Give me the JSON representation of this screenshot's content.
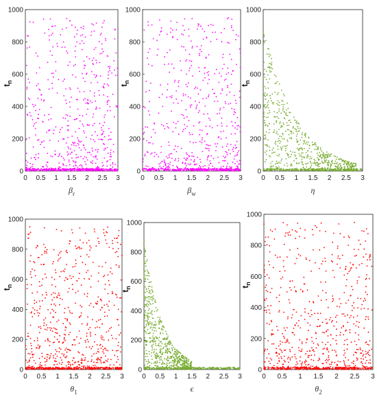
{
  "colors": {
    "magenta": "#ff00ff",
    "green": "#77ac30",
    "red": "#ff0000"
  },
  "chart_data": [
    {
      "type": "scatter",
      "panel": "1",
      "xlabel_base": "β",
      "xlabel_sub": "r",
      "ylabel_base": "t",
      "ylabel_sub": "n",
      "xlim": [
        0,
        3
      ],
      "ylim": [
        0,
        1000
      ],
      "xtick_labels": [
        "0",
        "0.5",
        "1",
        "1.5",
        "2",
        "2.5",
        "3"
      ],
      "ytick_labels": [
        "0",
        "200",
        "400",
        "600",
        "800",
        "1000"
      ],
      "color_key": "magenta",
      "trend": "uniform",
      "series": [
        {
          "note": "dense band near y≈10 across full x range; scattered points up to ~950, denser at larger x"
        }
      ]
    },
    {
      "type": "scatter",
      "panel": "2",
      "xlabel_base": "β",
      "xlabel_sub": "w",
      "ylabel_base": "t",
      "ylabel_sub": "n",
      "xlim": [
        0,
        3
      ],
      "ylim": [
        0,
        1000
      ],
      "xtick_labels": [
        "0",
        "0.5",
        "1",
        "1.5",
        "2",
        "2.5",
        "3"
      ],
      "ytick_labels": [
        "0",
        "200",
        "400",
        "600",
        "800",
        "1000"
      ],
      "color_key": "magenta",
      "trend": "uniform"
    },
    {
      "type": "scatter",
      "panel": "3",
      "xlabel_base": "η",
      "xlabel_sub": "",
      "ylabel_base": "t",
      "ylabel_sub": "n",
      "xlim": [
        0,
        3
      ],
      "ylim": [
        0,
        1000
      ],
      "xtick_labels": [
        "0",
        "0.5",
        "1",
        "1.5",
        "2",
        "2.5",
        "3"
      ],
      "ytick_labels": [
        "0",
        "200",
        "400",
        "600",
        "800",
        "1000"
      ],
      "color_key": "green",
      "trend": "decay"
    },
    {
      "type": "scatter",
      "panel": "4",
      "xlabel_base": "θ",
      "xlabel_sub": "1",
      "ylabel_base": "t",
      "ylabel_sub": "n",
      "xlim": [
        0,
        3
      ],
      "ylim": [
        0,
        1000
      ],
      "xtick_labels": [
        "0",
        "0.5",
        "1",
        "1.5",
        "2",
        "2.5",
        "3"
      ],
      "ytick_labels": [
        "0",
        "200",
        "400",
        "600",
        "800",
        "1000"
      ],
      "color_key": "red",
      "trend": "uniform"
    },
    {
      "type": "scatter",
      "panel": "5",
      "xlabel_base": "ϵ",
      "xlabel_sub": "",
      "ylabel_base": "t",
      "ylabel_sub": "n",
      "xlim": [
        0,
        3
      ],
      "ylim": [
        0,
        1000
      ],
      "xtick_labels": [
        "0",
        "0.5",
        "1",
        "1.5",
        "2",
        "2.5",
        "3"
      ],
      "ytick_labels": [
        "0",
        "200",
        "400",
        "600",
        "800",
        "1000"
      ],
      "color_key": "green",
      "trend": "decay_fast"
    },
    {
      "type": "scatter",
      "panel": "6",
      "xlabel_base": "θ",
      "xlabel_sub": "2",
      "ylabel_base": "t",
      "ylabel_sub": "n",
      "xlim": [
        0,
        3
      ],
      "ylim": [
        0,
        1000
      ],
      "xtick_labels": [
        "0",
        "0.5",
        "1",
        "1.5",
        "2",
        "2.5",
        "3"
      ],
      "ytick_labels": [
        "0",
        "200",
        "400",
        "600",
        "800",
        "1000"
      ],
      "color_key": "red",
      "trend": "uniform"
    }
  ]
}
